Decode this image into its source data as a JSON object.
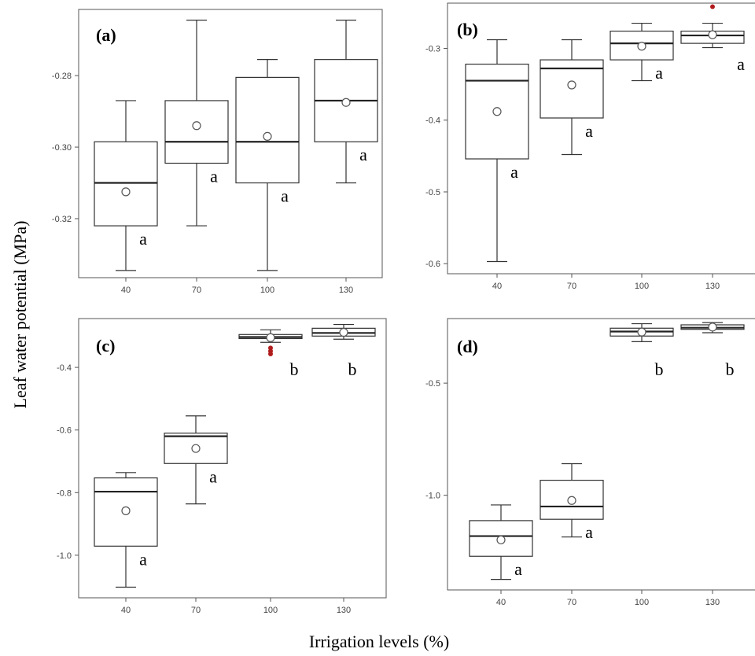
{
  "figure": {
    "ylabel": "Leaf water potential (MPa)",
    "xlabel": "Irrigation levels  (%)"
  },
  "chart_data": [
    {
      "type": "box",
      "title": "(a)",
      "categories": [
        "40",
        "70",
        "100",
        "130"
      ],
      "ylim": [
        -0.3365,
        -0.2615
      ],
      "yticks": [
        -0.32,
        -0.3,
        -0.28
      ],
      "ytick_labels": [
        "-0.32",
        "-0.30",
        "-0.28"
      ],
      "boxes": [
        {
          "min": -0.3345,
          "q1": -0.322,
          "median": -0.31,
          "q3": -0.2985,
          "max": -0.287,
          "mean": -0.3125,
          "letter": "a"
        },
        {
          "min": -0.322,
          "q1": -0.3045,
          "median": -0.2985,
          "q3": -0.287,
          "max": -0.2645,
          "mean": -0.294,
          "letter": "a"
        },
        {
          "min": -0.3345,
          "q1": -0.31,
          "median": -0.2985,
          "q3": -0.2805,
          "max": -0.2755,
          "mean": -0.297,
          "letter": "a"
        },
        {
          "min": -0.31,
          "q1": -0.2985,
          "median": -0.287,
          "q3": -0.2755,
          "max": -0.2645,
          "mean": -0.2875,
          "letter": "a"
        }
      ],
      "outliers": []
    },
    {
      "type": "box",
      "title": "(b)",
      "categories": [
        "40",
        "70",
        "100",
        "130"
      ],
      "ylim": [
        -0.614,
        -0.237
      ],
      "yticks": [
        -0.6,
        -0.5,
        -0.4,
        -0.3
      ],
      "ytick_labels": [
        "-0.6",
        "-0.5",
        "-0.4",
        "-0.3"
      ],
      "boxes": [
        {
          "min": -0.597,
          "q1": -0.454,
          "median": -0.345,
          "q3": -0.322,
          "max": -0.288,
          "mean": -0.388,
          "letter": "a"
        },
        {
          "min": -0.448,
          "q1": -0.397,
          "median": -0.328,
          "q3": -0.316,
          "max": -0.288,
          "mean": -0.351,
          "letter": "a"
        },
        {
          "min": -0.345,
          "q1": -0.316,
          "median": -0.293,
          "q3": -0.276,
          "max": -0.265,
          "mean": -0.297,
          "letter": "a"
        },
        {
          "min": -0.299,
          "q1": -0.293,
          "median": -0.282,
          "q3": -0.276,
          "max": -0.265,
          "mean": -0.281,
          "letter": "a"
        }
      ],
      "outliers": [
        {
          "category": "130",
          "value": -0.242
        }
      ]
    },
    {
      "type": "box",
      "title": "(c)",
      "categories": [
        "40",
        "70",
        "100",
        "130"
      ],
      "ylim": [
        -1.136,
        -0.244
      ],
      "yticks": [
        -1.0,
        -0.8,
        -0.6,
        -0.4
      ],
      "ytick_labels": [
        "-1.0",
        "-0.8",
        "-0.6",
        "-0.4"
      ],
      "boxes": [
        {
          "min": -1.102,
          "q1": -0.971,
          "median": -0.797,
          "q3": -0.753,
          "max": -0.736,
          "mean": -0.858,
          "letter": "a"
        },
        {
          "min": -0.836,
          "q1": -0.707,
          "median": -0.62,
          "q3": -0.61,
          "max": -0.555,
          "mean": -0.659,
          "letter": "a"
        },
        {
          "min": -0.32,
          "q1": -0.308,
          "median": -0.303,
          "q3": -0.295,
          "max": -0.28,
          "mean": -0.305,
          "letter": "b"
        },
        {
          "min": -0.31,
          "q1": -0.3,
          "median": -0.29,
          "q3": -0.275,
          "max": -0.263,
          "mean": -0.288,
          "letter": "b"
        }
      ],
      "outliers": [
        {
          "category": "100",
          "value": -0.338
        },
        {
          "category": "100",
          "value": -0.348
        },
        {
          "category": "100",
          "value": -0.357
        }
      ]
    },
    {
      "type": "box",
      "title": "(d)",
      "categories": [
        "40",
        "70",
        "100",
        "130"
      ],
      "ylim": [
        -1.422,
        -0.212
      ],
      "yticks": [
        -1.0,
        -0.5
      ],
      "ytick_labels": [
        "-1.0",
        "-0.5"
      ],
      "boxes": [
        {
          "min": -1.375,
          "q1": -1.272,
          "median": -1.182,
          "q3": -1.113,
          "max": -1.043,
          "mean": -1.199,
          "letter": "a"
        },
        {
          "min": -1.186,
          "q1": -1.107,
          "median": -1.05,
          "q3": -0.933,
          "max": -0.859,
          "mean": -1.023,
          "letter": "a"
        },
        {
          "min": -0.315,
          "q1": -0.29,
          "median": -0.27,
          "q3": -0.255,
          "max": -0.235,
          "mean": -0.272,
          "letter": "b"
        },
        {
          "min": -0.275,
          "q1": -0.26,
          "median": -0.253,
          "q3": -0.24,
          "max": -0.23,
          "mean": -0.25,
          "letter": "b"
        }
      ],
      "outliers": []
    }
  ]
}
